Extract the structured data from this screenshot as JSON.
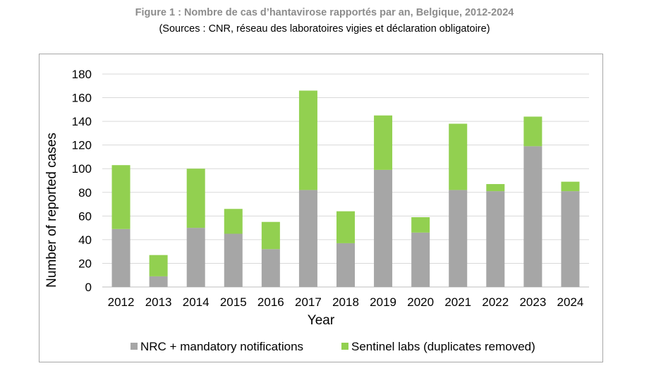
{
  "title": "Figure 1 : Nombre de cas d’hantavirose rapportés par an, Belgique, 2012-2024",
  "subtitle": "(Sources : CNR, réseau des laboratoires vigies et déclaration obligatoire)",
  "chart_data": {
    "type": "bar",
    "stacked": true,
    "categories": [
      "2012",
      "2013",
      "2014",
      "2015",
      "2016",
      "2017",
      "2018",
      "2019",
      "2020",
      "2021",
      "2022",
      "2023",
      "2024"
    ],
    "series": [
      {
        "name": "NRC + mandatory notifications",
        "color": "#a6a6a6",
        "values": [
          49,
          9,
          50,
          45,
          32,
          82,
          37,
          99,
          46,
          82,
          81,
          119,
          81
        ]
      },
      {
        "name": "Sentinel labs (duplicates removed)",
        "color": "#92d050",
        "values": [
          54,
          18,
          50,
          21,
          23,
          84,
          27,
          46,
          13,
          56,
          6,
          25,
          8
        ]
      }
    ],
    "xlabel": "Year",
    "ylabel": "Number of reported cases",
    "ylim": [
      0,
      180
    ],
    "yticks": [
      0,
      20,
      40,
      60,
      80,
      100,
      120,
      140,
      160,
      180
    ],
    "grid": true,
    "legend_position": "bottom"
  }
}
